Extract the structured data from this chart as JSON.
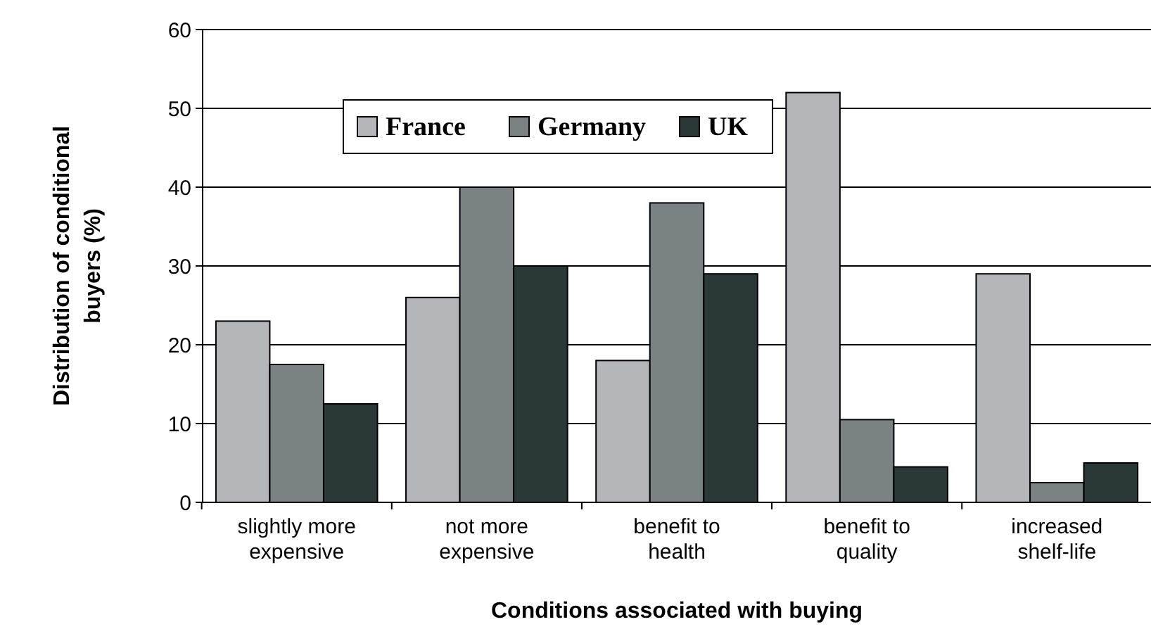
{
  "chart_data": {
    "type": "bar",
    "xlabel": "Conditions associated with buying",
    "ylabel": "Distribution of conditional buyers (%)",
    "categories": [
      "slightly more expensive",
      "not more expensive",
      "benefit to health",
      "benefit to quality",
      "increased shelf-life"
    ],
    "series": [
      {
        "name": "France",
        "color": "#b4b7ba",
        "values": [
          23,
          26,
          18,
          52,
          29
        ]
      },
      {
        "name": "Germany",
        "color": "#7b8284",
        "values": [
          17.5,
          40,
          38,
          10.5,
          2.5
        ]
      },
      {
        "name": "UK",
        "color": "#2b3838",
        "values": [
          12.5,
          30,
          29,
          4.5,
          5
        ]
      }
    ],
    "ylim": [
      0,
      60
    ],
    "yticks": [
      0,
      10,
      20,
      30,
      40,
      50,
      60
    ],
    "grid": "y",
    "legend": "top left"
  }
}
